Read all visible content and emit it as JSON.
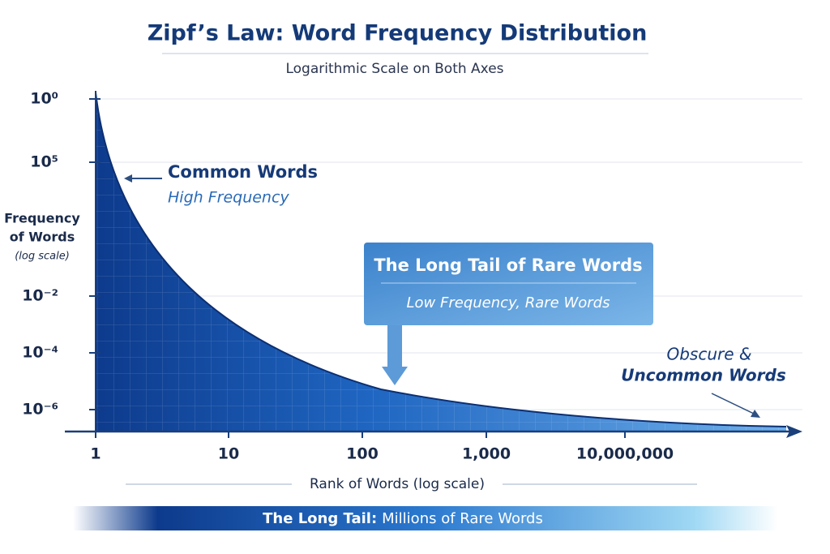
{
  "title": "Zipf’s Law: Word Frequency Distribution",
  "subtitle": "Logarithmic Scale on Both Axes",
  "y_axis": {
    "label": [
      "Frequency",
      "of Words"
    ],
    "note": "(log scale)",
    "tick_labels": [
      "10⁰",
      "10⁵",
      "10⁻²",
      "10⁻⁴",
      "10⁻⁶"
    ]
  },
  "x_axis": {
    "label": "Rank of Words (log scale)",
    "tick_labels": [
      "1",
      "10",
      "100",
      "1,000",
      "10,000,000"
    ]
  },
  "annotations": {
    "common": {
      "title": "Common Words",
      "subtitle": "High Frequency"
    },
    "callout": {
      "title": "The Long Tail of Rare Words",
      "subtitle": "Low Frequency, Rare Words"
    },
    "obscure": [
      "Obscure &",
      "Uncommon Words"
    ]
  },
  "footer": {
    "bold": "The Long Tail:",
    "text": "Millions of Rare Words"
  }
}
